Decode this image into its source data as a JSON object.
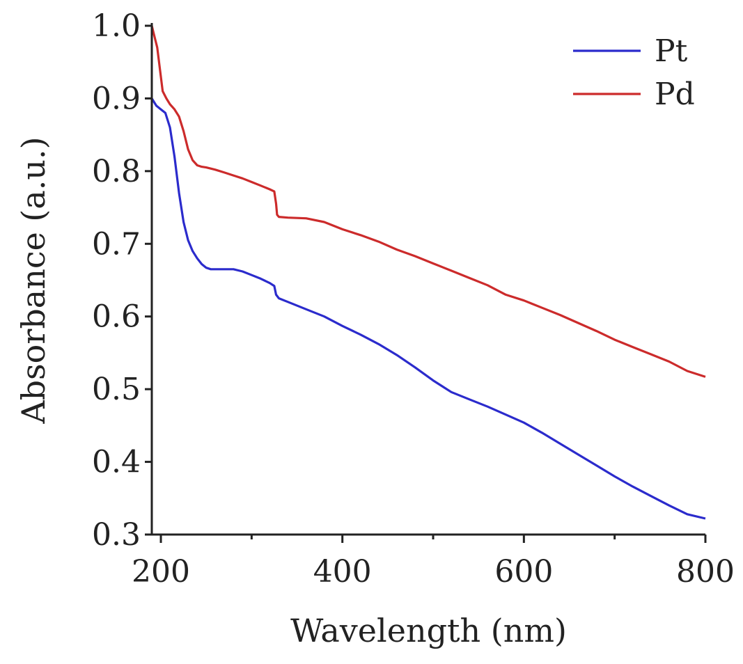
{
  "chart_data": {
    "type": "line",
    "title": "",
    "xlabel": "Wavelength (nm)",
    "ylabel": "Absorbance (a.u.)",
    "xlim": [
      190,
      800
    ],
    "ylim": [
      0.3,
      1.0
    ],
    "xticks": [
      200,
      400,
      600,
      800
    ],
    "xtick_labels": [
      "200",
      "400",
      "600",
      "800"
    ],
    "yticks": [
      0.3,
      0.4,
      0.5,
      0.6,
      0.7,
      0.8,
      0.9,
      1.0
    ],
    "ytick_labels": [
      "0.3",
      "0.4",
      "0.5",
      "0.6",
      "0.7",
      "0.8",
      "0.9",
      "1.0"
    ],
    "x_minor_step": 100,
    "legend_position": "top-right",
    "grid": false,
    "series": [
      {
        "name": "Pt",
        "color": "#2b2bcc",
        "points": [
          [
            190,
            0.9
          ],
          [
            195,
            0.89
          ],
          [
            200,
            0.885
          ],
          [
            205,
            0.88
          ],
          [
            210,
            0.86
          ],
          [
            215,
            0.82
          ],
          [
            220,
            0.77
          ],
          [
            225,
            0.73
          ],
          [
            230,
            0.705
          ],
          [
            235,
            0.69
          ],
          [
            240,
            0.68
          ],
          [
            245,
            0.672
          ],
          [
            250,
            0.667
          ],
          [
            255,
            0.665
          ],
          [
            260,
            0.665
          ],
          [
            270,
            0.665
          ],
          [
            280,
            0.665
          ],
          [
            290,
            0.662
          ],
          [
            300,
            0.657
          ],
          [
            310,
            0.652
          ],
          [
            320,
            0.646
          ],
          [
            325,
            0.642
          ],
          [
            327,
            0.63
          ],
          [
            330,
            0.625
          ],
          [
            340,
            0.62
          ],
          [
            360,
            0.61
          ],
          [
            380,
            0.6
          ],
          [
            400,
            0.587
          ],
          [
            420,
            0.575
          ],
          [
            440,
            0.562
          ],
          [
            460,
            0.547
          ],
          [
            480,
            0.53
          ],
          [
            500,
            0.512
          ],
          [
            520,
            0.496
          ],
          [
            540,
            0.486
          ],
          [
            560,
            0.476
          ],
          [
            580,
            0.465
          ],
          [
            600,
            0.454
          ],
          [
            620,
            0.44
          ],
          [
            640,
            0.425
          ],
          [
            660,
            0.41
          ],
          [
            680,
            0.395
          ],
          [
            700,
            0.38
          ],
          [
            720,
            0.366
          ],
          [
            740,
            0.353
          ],
          [
            760,
            0.34
          ],
          [
            780,
            0.328
          ],
          [
            800,
            0.322
          ]
        ]
      },
      {
        "name": "Pd",
        "color": "#cc2b2b",
        "points": [
          [
            190,
            1.0
          ],
          [
            193,
            0.985
          ],
          [
            196,
            0.97
          ],
          [
            199,
            0.94
          ],
          [
            202,
            0.91
          ],
          [
            206,
            0.9
          ],
          [
            210,
            0.892
          ],
          [
            215,
            0.885
          ],
          [
            220,
            0.875
          ],
          [
            225,
            0.855
          ],
          [
            230,
            0.83
          ],
          [
            235,
            0.815
          ],
          [
            240,
            0.808
          ],
          [
            245,
            0.806
          ],
          [
            250,
            0.805
          ],
          [
            260,
            0.802
          ],
          [
            270,
            0.798
          ],
          [
            280,
            0.794
          ],
          [
            290,
            0.79
          ],
          [
            300,
            0.785
          ],
          [
            310,
            0.78
          ],
          [
            320,
            0.775
          ],
          [
            325,
            0.772
          ],
          [
            327,
            0.755
          ],
          [
            328,
            0.74
          ],
          [
            330,
            0.737
          ],
          [
            340,
            0.736
          ],
          [
            360,
            0.735
          ],
          [
            380,
            0.73
          ],
          [
            400,
            0.72
          ],
          [
            420,
            0.712
          ],
          [
            440,
            0.703
          ],
          [
            460,
            0.692
          ],
          [
            480,
            0.683
          ],
          [
            500,
            0.673
          ],
          [
            520,
            0.663
          ],
          [
            540,
            0.653
          ],
          [
            560,
            0.643
          ],
          [
            580,
            0.63
          ],
          [
            600,
            0.622
          ],
          [
            620,
            0.612
          ],
          [
            640,
            0.602
          ],
          [
            660,
            0.591
          ],
          [
            680,
            0.58
          ],
          [
            700,
            0.568
          ],
          [
            720,
            0.558
          ],
          [
            740,
            0.548
          ],
          [
            760,
            0.538
          ],
          [
            780,
            0.525
          ],
          [
            800,
            0.517
          ]
        ]
      }
    ]
  }
}
